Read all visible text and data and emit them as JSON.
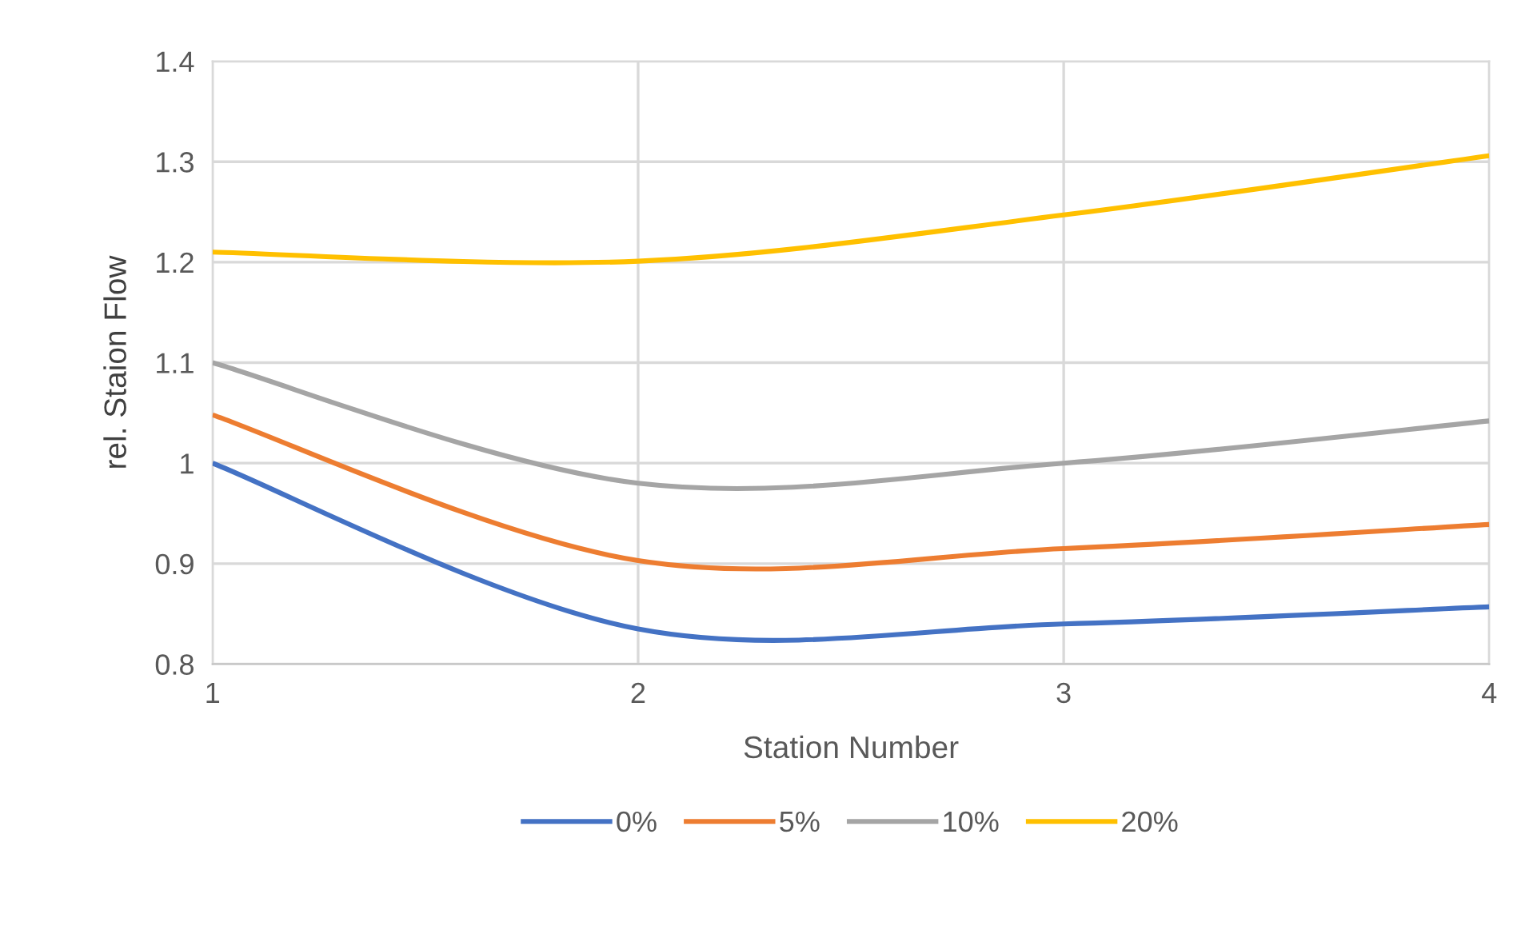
{
  "chart_data": {
    "type": "line",
    "xlabel": "Station Number",
    "ylabel": "rel. Staion Flow",
    "x": [
      1,
      2,
      3,
      4
    ],
    "series": [
      {
        "name": "0%",
        "color": "#4472c4",
        "values": [
          1.0,
          0.835,
          0.84,
          0.857
        ]
      },
      {
        "name": "5%",
        "color": "#ed7d31",
        "values": [
          1.048,
          0.903,
          0.915,
          0.939
        ]
      },
      {
        "name": "10%",
        "color": "#a5a5a5",
        "values": [
          1.1,
          0.98,
          1.0,
          1.042
        ]
      },
      {
        "name": "20%",
        "color": "#ffc000",
        "values": [
          1.21,
          1.201,
          1.247,
          1.306
        ]
      }
    ],
    "xlim": [
      1,
      4
    ],
    "xticks": [
      1,
      2,
      3,
      4
    ],
    "ylim": [
      0.8,
      1.4
    ],
    "yticks": [
      0.8,
      0.9,
      1,
      1.1,
      1.2,
      1.3,
      1.4
    ],
    "grid": true,
    "legend": "bottom",
    "marker": "none",
    "line_style": "solid"
  }
}
